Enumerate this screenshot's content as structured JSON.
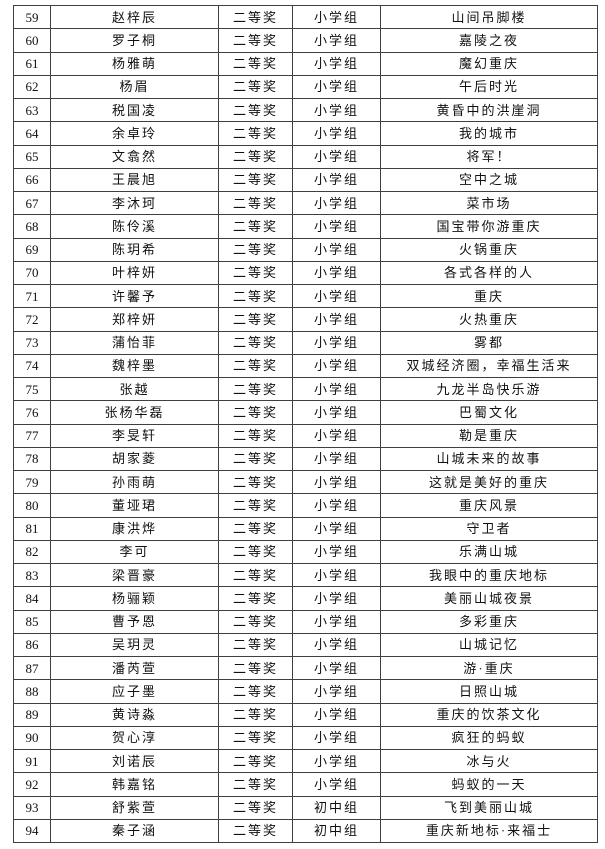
{
  "page": {
    "background_color": "#ffffff",
    "border_color": "#3f3f3f",
    "text_color": "#111111"
  },
  "table": {
    "rows": [
      {
        "no": "59",
        "name": "赵梓辰",
        "award": "二等奖",
        "group": "小学组",
        "title": "山间吊脚楼"
      },
      {
        "no": "60",
        "name": "罗子桐",
        "award": "二等奖",
        "group": "小学组",
        "title": "嘉陵之夜"
      },
      {
        "no": "61",
        "name": "杨雅萌",
        "award": "二等奖",
        "group": "小学组",
        "title": "魔幻重庆"
      },
      {
        "no": "62",
        "name": "杨眉",
        "award": "二等奖",
        "group": "小学组",
        "title": "午后时光"
      },
      {
        "no": "63",
        "name": "税国凌",
        "award": "二等奖",
        "group": "小学组",
        "title": "黄昏中的洪崖洞"
      },
      {
        "no": "64",
        "name": "余卓玲",
        "award": "二等奖",
        "group": "小学组",
        "title": "我的城市"
      },
      {
        "no": "65",
        "name": "文翕然",
        "award": "二等奖",
        "group": "小学组",
        "title": "将军！"
      },
      {
        "no": "66",
        "name": "王晨旭",
        "award": "二等奖",
        "group": "小学组",
        "title": "空中之城"
      },
      {
        "no": "67",
        "name": "李沐珂",
        "award": "二等奖",
        "group": "小学组",
        "title": "菜市场"
      },
      {
        "no": "68",
        "name": "陈伶溪",
        "award": "二等奖",
        "group": "小学组",
        "title": "国宝带你游重庆"
      },
      {
        "no": "69",
        "name": "陈玥希",
        "award": "二等奖",
        "group": "小学组",
        "title": "火锅重庆"
      },
      {
        "no": "70",
        "name": "叶梓妍",
        "award": "二等奖",
        "group": "小学组",
        "title": "各式各样的人"
      },
      {
        "no": "71",
        "name": "许馨予",
        "award": "二等奖",
        "group": "小学组",
        "title": "重庆"
      },
      {
        "no": "72",
        "name": "郑梓妍",
        "award": "二等奖",
        "group": "小学组",
        "title": "火热重庆"
      },
      {
        "no": "73",
        "name": "蒲怡菲",
        "award": "二等奖",
        "group": "小学组",
        "title": "雾都"
      },
      {
        "no": "74",
        "name": "魏梓墨",
        "award": "二等奖",
        "group": "小学组",
        "title": "双城经济圈，幸福生活来"
      },
      {
        "no": "75",
        "name": "张越",
        "award": "二等奖",
        "group": "小学组",
        "title": "九龙半岛快乐游"
      },
      {
        "no": "76",
        "name": "张杨华磊",
        "award": "二等奖",
        "group": "小学组",
        "title": "巴蜀文化"
      },
      {
        "no": "77",
        "name": "李旻轩",
        "award": "二等奖",
        "group": "小学组",
        "title": "勒是重庆"
      },
      {
        "no": "78",
        "name": "胡家菱",
        "award": "二等奖",
        "group": "小学组",
        "title": "山城未来的故事"
      },
      {
        "no": "79",
        "name": "孙雨萌",
        "award": "二等奖",
        "group": "小学组",
        "title": "这就是美好的重庆"
      },
      {
        "no": "80",
        "name": "董垭珺",
        "award": "二等奖",
        "group": "小学组",
        "title": "重庆风景"
      },
      {
        "no": "81",
        "name": "康洪烨",
        "award": "二等奖",
        "group": "小学组",
        "title": "守卫者"
      },
      {
        "no": "82",
        "name": "李可",
        "award": "二等奖",
        "group": "小学组",
        "title": "乐满山城"
      },
      {
        "no": "83",
        "name": "梁晋豪",
        "award": "二等奖",
        "group": "小学组",
        "title": "我眼中的重庆地标"
      },
      {
        "no": "84",
        "name": "杨骊颖",
        "award": "二等奖",
        "group": "小学组",
        "title": "美丽山城夜景"
      },
      {
        "no": "85",
        "name": "曹予恩",
        "award": "二等奖",
        "group": "小学组",
        "title": "多彩重庆"
      },
      {
        "no": "86",
        "name": "吴玥灵",
        "award": "二等奖",
        "group": "小学组",
        "title": "山城记忆"
      },
      {
        "no": "87",
        "name": "潘芮萱",
        "award": "二等奖",
        "group": "小学组",
        "title": "游·重庆"
      },
      {
        "no": "88",
        "name": "应子墨",
        "award": "二等奖",
        "group": "小学组",
        "title": "日照山城"
      },
      {
        "no": "89",
        "name": "黄诗淼",
        "award": "二等奖",
        "group": "小学组",
        "title": "重庆的饮茶文化"
      },
      {
        "no": "90",
        "name": "贺心淳",
        "award": "二等奖",
        "group": "小学组",
        "title": "疯狂的蚂蚁"
      },
      {
        "no": "91",
        "name": "刘诺辰",
        "award": "二等奖",
        "group": "小学组",
        "title": "冰与火"
      },
      {
        "no": "92",
        "name": "韩嘉铭",
        "award": "二等奖",
        "group": "小学组",
        "title": "蚂蚁的一天"
      },
      {
        "no": "93",
        "name": "舒紫萱",
        "award": "二等奖",
        "group": "初中组",
        "title": "飞到美丽山城"
      },
      {
        "no": "94",
        "name": "秦子涵",
        "award": "二等奖",
        "group": "初中组",
        "title": "重庆新地标·来福士"
      }
    ]
  }
}
